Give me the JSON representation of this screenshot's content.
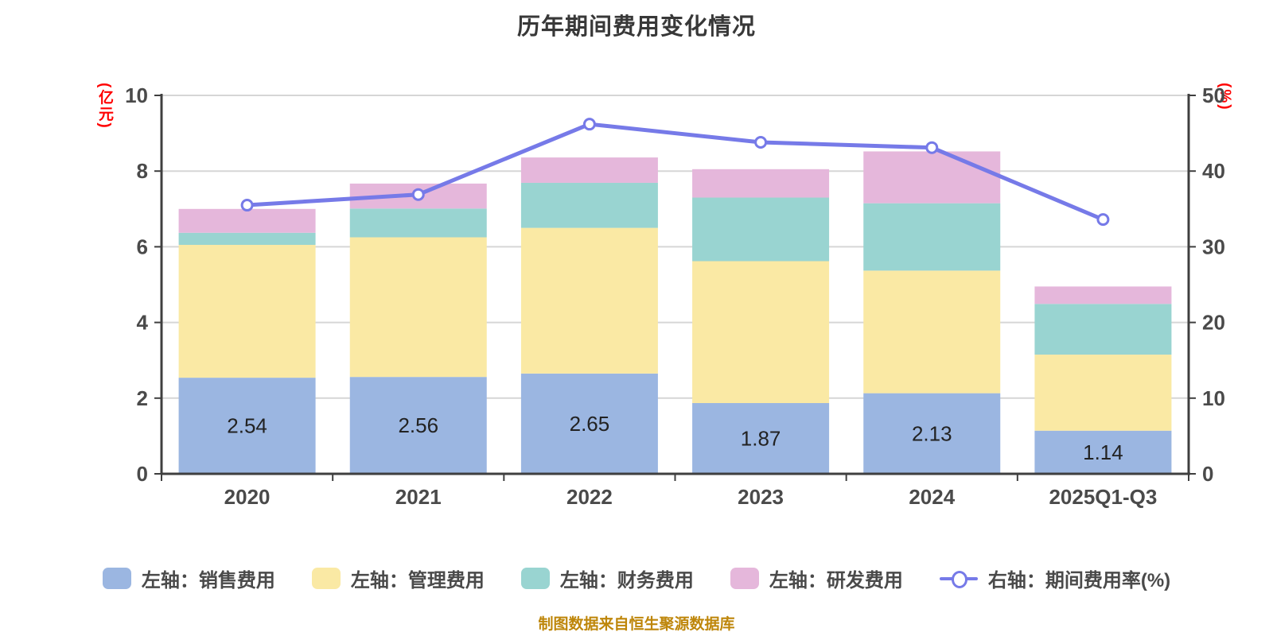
{
  "source_note": "制图数据来自恒生聚源数据库",
  "colors": {
    "title": "#383838",
    "axis_text": "#4A4A4A",
    "axis_line": "#3F3F3F",
    "grid": "#D6D6D6",
    "unit": "#FF0000",
    "source": "#BE860A",
    "bar_label": "#222222",
    "marker_fill": "#FFFFFF"
  },
  "chart_data": {
    "type": "stacked-bar-with-line",
    "title": "历年期间费用变化情况",
    "categories": [
      "2020",
      "2021",
      "2022",
      "2023",
      "2024",
      "2025Q1-Q3"
    ],
    "left_axis": {
      "unit": "(亿元)",
      "min": 0,
      "max": 10,
      "ticks": [
        "0",
        "2",
        "4",
        "6",
        "8",
        "10"
      ]
    },
    "right_axis": {
      "unit": "(%)",
      "min": 0,
      "max": 50,
      "ticks": [
        "0",
        "10",
        "20",
        "30",
        "40",
        "50"
      ]
    },
    "legend_position": "bottom",
    "grid": true,
    "series": [
      {
        "key": "sales",
        "name": "左轴：销售费用",
        "type": "bar",
        "stack": true,
        "color": "#9BB6E1",
        "values": [
          2.54,
          2.56,
          2.65,
          1.87,
          2.13,
          1.14
        ],
        "show_labels": true,
        "labels": [
          "2.54",
          "2.56",
          "2.65",
          "1.87",
          "2.13",
          "1.14"
        ]
      },
      {
        "key": "admin",
        "name": "左轴：管理费用",
        "type": "bar",
        "stack": true,
        "color": "#FAE9A4",
        "values": [
          3.51,
          3.69,
          3.85,
          3.75,
          3.24,
          2.01
        ],
        "show_labels": false
      },
      {
        "key": "finance",
        "name": "左轴：财务费用",
        "type": "bar",
        "stack": true,
        "color": "#99D4D1",
        "values": [
          0.32,
          0.76,
          1.19,
          1.68,
          1.78,
          1.34
        ],
        "show_labels": false
      },
      {
        "key": "rnd",
        "name": "左轴：研发费用",
        "type": "bar",
        "stack": true,
        "color": "#E5B7DB",
        "values": [
          0.63,
          0.66,
          0.67,
          0.75,
          1.37,
          0.46
        ],
        "show_labels": false
      },
      {
        "key": "rate",
        "name": "右轴：期间费用率(%)",
        "type": "line",
        "y_axis": "right",
        "color": "#767AE8",
        "values": [
          35.5,
          36.9,
          46.2,
          43.8,
          43.1,
          33.6
        ]
      }
    ]
  }
}
